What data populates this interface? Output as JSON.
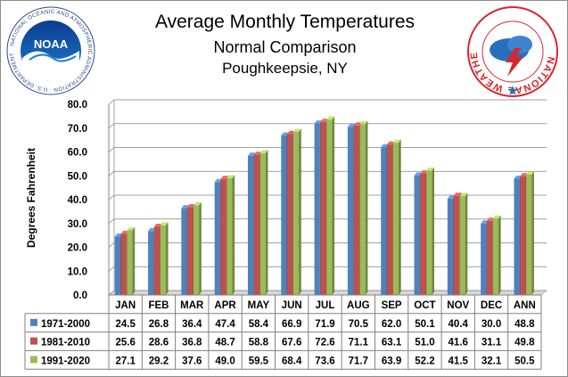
{
  "chart_data": {
    "type": "bar",
    "title": "Average Monthly Temperatures",
    "subtitle": "Normal  Comparison",
    "location": "Poughkeepsie, NY",
    "ylabel": "Degrees Fahrenheit",
    "ylim": [
      0,
      80
    ],
    "yticks": [
      "0.0",
      "10.0",
      "20.0",
      "30.0",
      "40.0",
      "50.0",
      "60.0",
      "70.0",
      "80.0"
    ],
    "grid": true,
    "legend": "data-table-left",
    "categories": [
      "JAN",
      "FEB",
      "MAR",
      "APR",
      "MAY",
      "JUN",
      "JUL",
      "AUG",
      "SEP",
      "OCT",
      "NOV",
      "DEC",
      "ANN"
    ],
    "series": [
      {
        "name": "1971-2000",
        "color": "#4f81bd",
        "values": [
          24.5,
          26.8,
          36.4,
          47.4,
          58.4,
          66.9,
          71.9,
          70.5,
          62.0,
          50.1,
          40.4,
          30.0,
          48.8
        ],
        "labels": [
          "24.5",
          "26.8",
          "36.4",
          "47.4",
          "58.4",
          "66.9",
          "71.9",
          "70.5",
          "62.0",
          "50.1",
          "40.4",
          "30.0",
          "48.8"
        ]
      },
      {
        "name": "1981-2010",
        "color": "#c0504d",
        "values": [
          25.6,
          28.6,
          36.8,
          48.7,
          58.8,
          67.6,
          72.6,
          71.1,
          63.1,
          51.0,
          41.6,
          31.1,
          49.8
        ],
        "labels": [
          "25.6",
          "28.6",
          "36.8",
          "48.7",
          "58.8",
          "67.6",
          "72.6",
          "71.1",
          "63.1",
          "51.0",
          "41.6",
          "31.1",
          "49.8"
        ]
      },
      {
        "name": "1991-2020",
        "color": "#9bbb59",
        "values": [
          27.1,
          29.2,
          37.6,
          49.0,
          59.5,
          68.4,
          73.6,
          71.7,
          63.9,
          52.2,
          41.5,
          32.1,
          50.5
        ],
        "labels": [
          "27.1",
          "29.2",
          "37.6",
          "49.0",
          "59.5",
          "68.4",
          "73.6",
          "71.7",
          "63.9",
          "52.2",
          "41.5",
          "32.1",
          "50.5"
        ]
      }
    ]
  },
  "logos": {
    "noaa": {
      "center_text": "NOAA",
      "ring_text": "NATIONAL OCEANIC AND ATMOSPHERIC ADMINISTRATION · U.S. DEPARTMENT OF COMMERCE"
    },
    "nws": {
      "ring_text": "NATIONAL WEATHER SERVICE"
    }
  }
}
